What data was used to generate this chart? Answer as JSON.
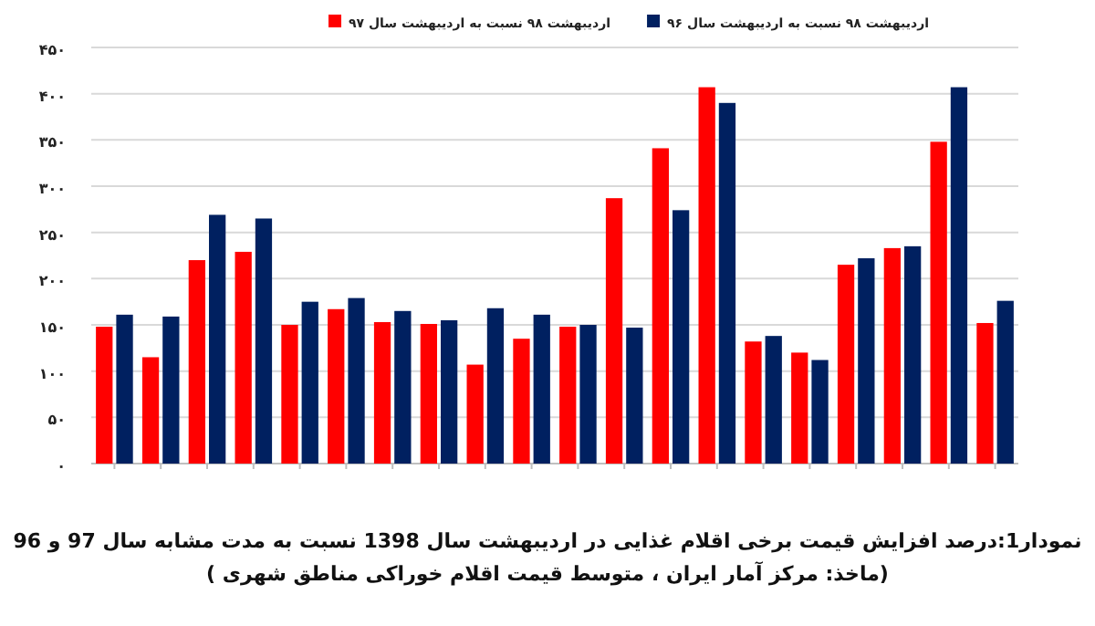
{
  "chart_data": {
    "type": "bar",
    "title": "نمودار1:درصد افزایش قیمت برخی اقلام غذایی در اردیبهشت سال 1398 نسبت به مدت مشابه سال 97 و 96",
    "annotations": [
      "(ماخذ: مرکز آمار ایران ، متوسط قیمت اقلام خوراکی مناطق شهری )"
    ],
    "categories": [
      null,
      null,
      null,
      null,
      null,
      null,
      null,
      null,
      null,
      null,
      null,
      null,
      null,
      null,
      null,
      null,
      null,
      null,
      null,
      null
    ],
    "series": [
      {
        "name": "اردیبهشت ۹۸ نسبت به اردیبهشت سال ۹۷",
        "color": "#ff0000",
        "values": [
          148,
          115,
          220,
          229,
          150,
          167,
          153,
          151,
          107,
          135,
          148,
          287,
          341,
          407,
          132,
          120,
          215,
          233,
          348,
          152
        ]
      },
      {
        "name": "اردیبهشت ۹۸ نسبت به اردیبهشت سال ۹۶",
        "color": "#002060",
        "values": [
          161,
          159,
          269,
          265,
          175,
          179,
          165,
          155,
          168,
          161,
          150,
          147,
          274,
          390,
          138,
          112,
          222,
          235,
          407,
          176
        ]
      }
    ],
    "ylim": [
      0,
      450
    ],
    "yticks": [
      {
        "value": 0,
        "label": "۰"
      },
      {
        "value": 50,
        "label": "۵۰"
      },
      {
        "value": 100,
        "label": "۱۰۰"
      },
      {
        "value": 150,
        "label": "۱۵۰"
      },
      {
        "value": 200,
        "label": "۲۰۰"
      },
      {
        "value": 250,
        "label": "۲۵۰"
      },
      {
        "value": 300,
        "label": "۳۰۰"
      },
      {
        "value": 350,
        "label": "۳۵۰"
      },
      {
        "value": 400,
        "label": "۴۰۰"
      },
      {
        "value": 450,
        "label": "۴۵۰"
      }
    ],
    "grid": "y",
    "legend": "top"
  }
}
